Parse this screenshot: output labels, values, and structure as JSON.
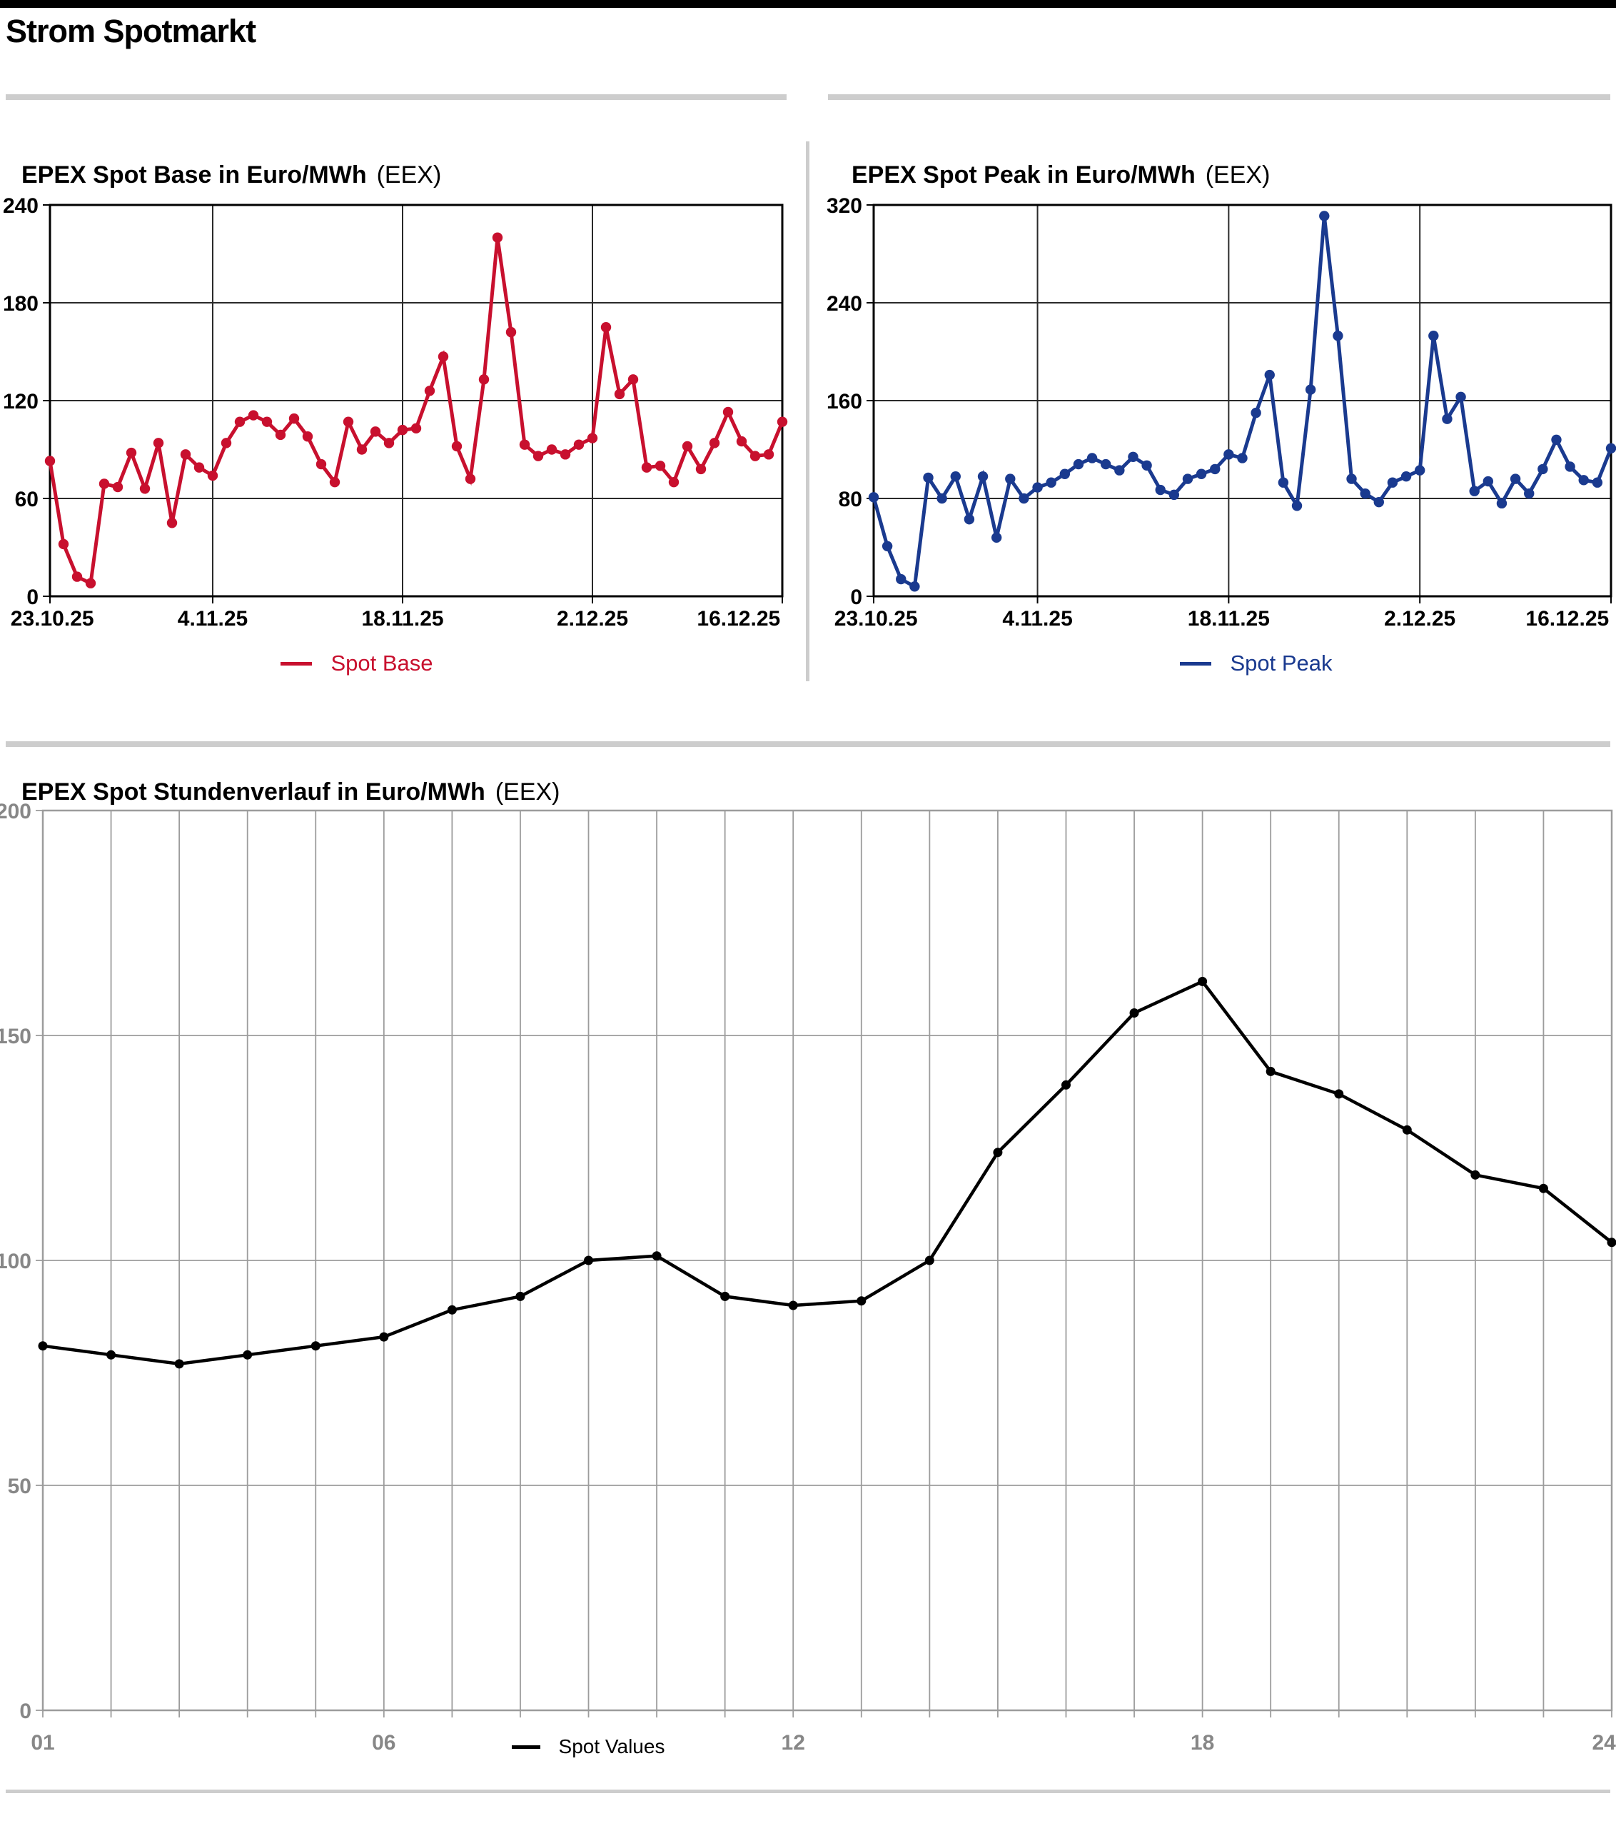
{
  "page": {
    "title": "Strom Spotmarkt"
  },
  "chart_data": [
    {
      "id": "base",
      "type": "line",
      "title": "EPEX Spot Base in Euro/MWh",
      "title_suffix": "(EEX)",
      "legend": "Spot Base",
      "series_color": "#c8102e",
      "x_start": "23.10.25",
      "x_end": "16.12.25",
      "x_tick_labels": [
        "23.10.25",
        "4.11.25",
        "18.11.25",
        "2.12.25",
        "16.12.25"
      ],
      "x_tick_indices": [
        0,
        12,
        26,
        40,
        54
      ],
      "y_ticks": [
        0,
        60,
        120,
        180,
        240
      ],
      "ylim": [
        0,
        240
      ],
      "grid": "on",
      "legend_position": "bottom",
      "values": [
        83,
        32,
        12,
        8,
        69,
        67,
        88,
        66,
        94,
        45,
        87,
        79,
        74,
        94,
        107,
        111,
        107,
        99,
        109,
        98,
        81,
        70,
        107,
        90,
        101,
        94,
        102,
        103,
        126,
        147,
        92,
        72,
        133,
        220,
        162,
        93,
        86,
        90,
        87,
        93,
        97,
        165,
        124,
        133,
        79,
        80,
        70,
        92,
        78,
        94,
        113,
        95,
        86,
        87,
        107
      ]
    },
    {
      "id": "peak",
      "type": "line",
      "title": "EPEX Spot Peak in Euro/MWh",
      "title_suffix": "(EEX)",
      "legend": "Spot Peak",
      "series_color": "#1a3a8f",
      "x_start": "23.10.25",
      "x_end": "16.12.25",
      "x_tick_labels": [
        "23.10.25",
        "4.11.25",
        "18.11.25",
        "2.12.25",
        "16.12.25"
      ],
      "x_tick_indices": [
        0,
        12,
        26,
        40,
        54
      ],
      "y_ticks": [
        0,
        80,
        160,
        240,
        320
      ],
      "ylim": [
        0,
        320
      ],
      "grid": "on",
      "legend_position": "bottom",
      "values": [
        81,
        41,
        14,
        8,
        97,
        80,
        98,
        63,
        98,
        48,
        96,
        80,
        89,
        93,
        100,
        108,
        113,
        108,
        103,
        114,
        107,
        87,
        83,
        96,
        100,
        104,
        116,
        113,
        150,
        181,
        93,
        74,
        169,
        311,
        213,
        96,
        84,
        77,
        93,
        98,
        103,
        213,
        145,
        163,
        86,
        94,
        76,
        96,
        84,
        104,
        128,
        106,
        95,
        93,
        121
      ]
    },
    {
      "id": "hours",
      "type": "line",
      "title": "EPEX Spot Stundenverlauf in Euro/MWh",
      "title_suffix": "(EEX)",
      "legend": "Spot Values",
      "series_color": "#000000",
      "xlabel_hours_first": "01",
      "xlabel_hours_last": "24",
      "x_tick_labels": [
        "01",
        "06",
        "12",
        "18",
        "24"
      ],
      "x_tick_indices": [
        0,
        5,
        11,
        17,
        23
      ],
      "y_ticks": [
        0,
        50,
        100,
        150,
        200
      ],
      "ylim": [
        0,
        200
      ],
      "grid": "on",
      "axis_color": "#9c9c9c",
      "label_color": "#878787",
      "legend_position": "bottom",
      "values": [
        81,
        79,
        77,
        79,
        81,
        83,
        89,
        92,
        100,
        101,
        92,
        90,
        91,
        100,
        124,
        139,
        155,
        162,
        142,
        137,
        129,
        119,
        116,
        104
      ]
    }
  ]
}
